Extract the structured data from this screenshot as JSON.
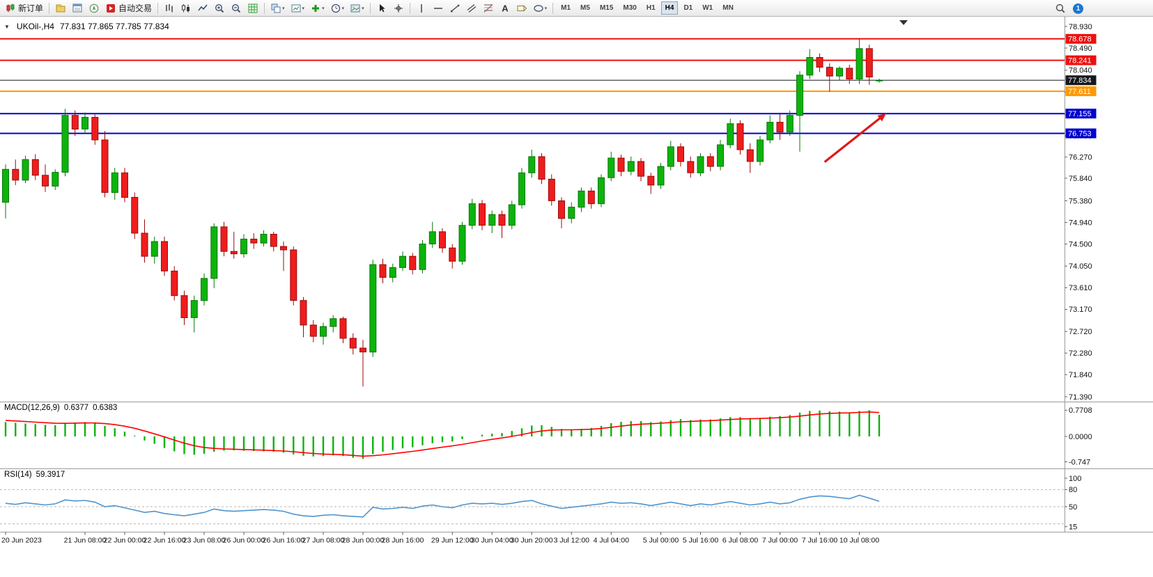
{
  "glyphs": {
    "collapse": "▼",
    "caret": "▾"
  },
  "toolbar": {
    "new_order_label": "新订单",
    "autotrade_label": "自动交易",
    "timeframes": [
      "M1",
      "M5",
      "M15",
      "M30",
      "H1",
      "H4",
      "D1",
      "W1",
      "MN"
    ],
    "active_timeframe": "H4",
    "notification_count": "1",
    "items": [
      {
        "type": "button",
        "name": "new-order-button",
        "icon": "neworder",
        "label": "新订单"
      },
      {
        "type": "sep"
      },
      {
        "type": "icon",
        "name": "charts-profile-icon",
        "icon": "profile"
      },
      {
        "type": "icon",
        "name": "market-watch-icon",
        "icon": "market"
      },
      {
        "type": "icon",
        "name": "navigator-icon",
        "icon": "navigator"
      },
      {
        "type": "button",
        "name": "autotrading-button",
        "icon": "autotrade",
        "label": "自动交易"
      },
      {
        "type": "sep"
      },
      {
        "type": "icon",
        "name": "bar-chart-type-icon",
        "icon": "bars"
      },
      {
        "type": "icon",
        "name": "candle-chart-type-icon",
        "icon": "candles"
      },
      {
        "type": "icon",
        "name": "line-chart-type-icon",
        "icon": "linechart"
      },
      {
        "type": "icon",
        "name": "zoom-in-icon",
        "icon": "zoomin"
      },
      {
        "type": "icon",
        "name": "zoom-out-icon",
        "icon": "zoomout"
      },
      {
        "type": "icon",
        "name": "grid-icon",
        "icon": "grid"
      },
      {
        "type": "sep"
      },
      {
        "type": "icon",
        "name": "tile-windows-icon",
        "icon": "tile",
        "caret": true
      },
      {
        "type": "icon",
        "name": "chart-shift-icon",
        "icon": "shift",
        "caret": true
      },
      {
        "type": "icon",
        "name": "add-indicator-icon",
        "icon": "addind",
        "caret": true
      },
      {
        "type": "icon",
        "name": "periods-icon",
        "icon": "clock",
        "caret": true
      },
      {
        "type": "icon",
        "name": "templates-icon",
        "icon": "template",
        "caret": true
      },
      {
        "type": "sep"
      },
      {
        "type": "icon",
        "name": "cursor-icon",
        "icon": "cursor"
      },
      {
        "type": "icon",
        "name": "crosshair-icon",
        "icon": "crosshair"
      },
      {
        "type": "sep"
      },
      {
        "type": "icon",
        "name": "vertical-line-icon",
        "icon": "vline"
      },
      {
        "type": "icon",
        "name": "horizontal-line-icon",
        "icon": "hline"
      },
      {
        "type": "icon",
        "name": "trendline-icon",
        "icon": "trend"
      },
      {
        "type": "icon",
        "name": "channel-icon",
        "icon": "channel"
      },
      {
        "type": "icon",
        "name": "fibonacci-icon",
        "icon": "fibo"
      },
      {
        "type": "icon",
        "name": "text-icon",
        "icon": "textA"
      },
      {
        "type": "icon",
        "name": "label-icon",
        "icon": "label"
      },
      {
        "type": "icon",
        "name": "shapes-icon",
        "icon": "shapes",
        "caret": true
      },
      {
        "type": "sep"
      },
      {
        "type": "tf-group"
      }
    ]
  },
  "chart": {
    "header": {
      "symbol_period": "UKOil-,H4",
      "ohlc": "77.831 77.865 77.785 77.834"
    },
    "price_axis": {
      "ticks": [
        "78.930",
        "78.490",
        "78.040",
        "77.590",
        "77.140",
        "76.700",
        "76.270",
        "75.840",
        "75.380",
        "74.940",
        "74.500",
        "74.050",
        "73.610",
        "73.170",
        "72.720",
        "72.280",
        "71.840",
        "71.390"
      ],
      "badges": [
        {
          "value": "78.678",
          "color": "#ee0f0f"
        },
        {
          "value": "78.241",
          "color": "#ee0f0f"
        },
        {
          "value": "77.834",
          "color": "#15181d"
        },
        {
          "value": "77.611",
          "color": "#ff9800"
        },
        {
          "value": "77.155",
          "color": "#0000d0"
        },
        {
          "value": "76.753",
          "color": "#0000d0"
        }
      ]
    },
    "levels": [
      {
        "price": 78.678,
        "color": "#ee0f0f",
        "width": 2
      },
      {
        "price": 78.241,
        "color": "#ee0f0f",
        "width": 2
      },
      {
        "price": 77.834,
        "color": "#1a1a1a",
        "width": 1
      },
      {
        "price": 77.611,
        "color": "#ff9800",
        "width": 2
      },
      {
        "price": 77.155,
        "color": "#0000d0",
        "width": 2
      },
      {
        "price": 76.753,
        "color": "#0000d0",
        "width": 2
      }
    ],
    "ylim": [
      71.39,
      78.93
    ]
  },
  "chart_data": {
    "type": "candlestick",
    "symbol": "UKOil-",
    "period": "H4",
    "up_color": "#0db30d",
    "up_border": "#067806",
    "down_color": "#ef1d1d",
    "down_border": "#9c0a0a",
    "candles": [
      [
        75.35,
        76.12,
        75.02,
        76.02
      ],
      [
        76.02,
        76.22,
        75.7,
        75.8
      ],
      [
        75.8,
        76.3,
        75.74,
        76.22
      ],
      [
        76.22,
        76.33,
        75.8,
        75.9
      ],
      [
        75.9,
        76.12,
        75.56,
        75.68
      ],
      [
        75.68,
        76.02,
        75.6,
        75.96
      ],
      [
        75.96,
        77.25,
        75.88,
        77.12
      ],
      [
        77.12,
        77.22,
        76.7,
        76.84
      ],
      [
        76.84,
        77.18,
        76.74,
        77.08
      ],
      [
        77.08,
        77.14,
        76.52,
        76.62
      ],
      [
        76.62,
        76.8,
        75.45,
        75.55
      ],
      [
        75.55,
        76.05,
        75.4,
        75.95
      ],
      [
        75.95,
        76.05,
        75.35,
        75.45
      ],
      [
        75.45,
        75.55,
        74.6,
        74.72
      ],
      [
        74.72,
        75.0,
        74.12,
        74.25
      ],
      [
        74.25,
        74.65,
        74.1,
        74.55
      ],
      [
        74.55,
        74.65,
        73.85,
        73.95
      ],
      [
        73.95,
        74.05,
        73.35,
        73.45
      ],
      [
        73.45,
        73.55,
        72.85,
        73.0
      ],
      [
        73.0,
        73.45,
        72.7,
        73.35
      ],
      [
        73.35,
        73.9,
        73.25,
        73.8
      ],
      [
        73.8,
        74.92,
        73.6,
        74.85
      ],
      [
        74.85,
        74.95,
        74.25,
        74.35
      ],
      [
        74.35,
        74.75,
        74.2,
        74.3
      ],
      [
        74.3,
        74.7,
        74.22,
        74.6
      ],
      [
        74.6,
        74.72,
        74.4,
        74.52
      ],
      [
        74.52,
        74.78,
        74.45,
        74.7
      ],
      [
        74.7,
        74.75,
        74.35,
        74.45
      ],
      [
        74.45,
        74.55,
        73.95,
        74.38
      ],
      [
        74.38,
        74.45,
        73.25,
        73.35
      ],
      [
        73.35,
        73.42,
        72.6,
        72.85
      ],
      [
        72.85,
        72.95,
        72.5,
        72.62
      ],
      [
        72.62,
        72.9,
        72.45,
        72.82
      ],
      [
        72.82,
        73.05,
        72.7,
        72.98
      ],
      [
        72.98,
        73.02,
        72.48,
        72.58
      ],
      [
        72.58,
        72.68,
        72.25,
        72.38
      ],
      [
        72.38,
        72.55,
        71.6,
        72.3
      ],
      [
        72.3,
        74.18,
        72.2,
        74.08
      ],
      [
        74.08,
        74.2,
        73.7,
        73.82
      ],
      [
        73.82,
        74.1,
        73.72,
        74.02
      ],
      [
        74.02,
        74.35,
        73.95,
        74.25
      ],
      [
        74.25,
        74.32,
        73.88,
        73.98
      ],
      [
        73.98,
        74.58,
        73.9,
        74.5
      ],
      [
        74.5,
        74.95,
        74.42,
        74.75
      ],
      [
        74.75,
        74.82,
        74.32,
        74.42
      ],
      [
        74.42,
        74.5,
        74.0,
        74.15
      ],
      [
        74.15,
        74.95,
        74.08,
        74.88
      ],
      [
        74.88,
        75.42,
        74.8,
        75.32
      ],
      [
        75.32,
        75.4,
        74.78,
        74.88
      ],
      [
        74.88,
        75.18,
        74.72,
        75.1
      ],
      [
        75.1,
        75.18,
        74.62,
        74.88
      ],
      [
        74.88,
        75.38,
        74.8,
        75.3
      ],
      [
        75.3,
        76.05,
        75.22,
        75.95
      ],
      [
        75.95,
        76.42,
        75.85,
        76.28
      ],
      [
        76.28,
        76.35,
        75.72,
        75.82
      ],
      [
        75.82,
        75.92,
        75.28,
        75.38
      ],
      [
        75.38,
        75.45,
        74.82,
        75.02
      ],
      [
        75.02,
        75.35,
        74.92,
        75.25
      ],
      [
        75.25,
        75.65,
        75.15,
        75.58
      ],
      [
        75.58,
        75.65,
        75.22,
        75.32
      ],
      [
        75.32,
        75.92,
        75.25,
        75.85
      ],
      [
        75.85,
        76.38,
        75.78,
        76.25
      ],
      [
        76.25,
        76.32,
        75.88,
        75.98
      ],
      [
        75.98,
        76.28,
        75.9,
        76.18
      ],
      [
        76.18,
        76.25,
        75.78,
        75.88
      ],
      [
        75.88,
        75.95,
        75.52,
        75.7
      ],
      [
        75.7,
        76.15,
        75.62,
        76.08
      ],
      [
        76.08,
        76.6,
        76.0,
        76.48
      ],
      [
        76.48,
        76.55,
        76.08,
        76.18
      ],
      [
        76.18,
        76.28,
        75.85,
        75.95
      ],
      [
        75.95,
        76.35,
        75.88,
        76.28
      ],
      [
        76.28,
        76.35,
        75.98,
        76.08
      ],
      [
        76.08,
        76.62,
        76.0,
        76.52
      ],
      [
        76.52,
        77.05,
        76.45,
        76.95
      ],
      [
        76.95,
        77.02,
        76.32,
        76.42
      ],
      [
        76.42,
        76.55,
        75.95,
        76.18
      ],
      [
        76.18,
        76.7,
        76.1,
        76.62
      ],
      [
        76.62,
        77.12,
        76.55,
        76.98
      ],
      [
        76.98,
        77.15,
        76.62,
        76.78
      ],
      [
        76.78,
        77.22,
        76.7,
        77.12
      ],
      [
        77.12,
        78.02,
        76.38,
        77.94
      ],
      [
        77.94,
        78.47,
        77.86,
        78.3
      ],
      [
        78.3,
        78.38,
        78.0,
        78.1
      ],
      [
        78.1,
        78.18,
        77.6,
        77.92
      ],
      [
        77.92,
        78.12,
        77.84,
        78.08
      ],
      [
        78.08,
        78.15,
        77.76,
        77.86
      ],
      [
        77.86,
        78.68,
        77.76,
        78.48
      ],
      [
        78.48,
        78.56,
        77.74,
        77.9
      ],
      [
        77.831,
        77.865,
        77.785,
        77.834
      ]
    ],
    "time_labels": [
      {
        "i": 0,
        "t": "20 Jun 2023"
      },
      {
        "i": 8,
        "t": "21 Jun 08:00"
      },
      {
        "i": 12,
        "t": "22 Jun 00:00"
      },
      {
        "i": 16,
        "t": "22 Jun 16:00"
      },
      {
        "i": 20,
        "t": "23 Jun 08:00"
      },
      {
        "i": 24,
        "t": "26 Jun 00:00"
      },
      {
        "i": 28,
        "t": "26 Jun 16:00"
      },
      {
        "i": 32,
        "t": "27 Jun 08:00"
      },
      {
        "i": 36,
        "t": "28 Jun 00:00"
      },
      {
        "i": 40,
        "t": "28 Jun 16:00"
      },
      {
        "i": 45,
        "t": "29 Jun 12:00"
      },
      {
        "i": 49,
        "t": "30 Jun 04:00"
      },
      {
        "i": 53,
        "t": "30 Jun 20:00"
      },
      {
        "i": 57,
        "t": "3 Jul 12:00"
      },
      {
        "i": 61,
        "t": "4 Jul 04:00"
      },
      {
        "i": 66,
        "t": "5 Jul 00:00"
      },
      {
        "i": 70,
        "t": "5 Jul 16:00"
      },
      {
        "i": 74,
        "t": "6 Jul 08:00"
      },
      {
        "i": 78,
        "t": "7 Jul 00:00"
      },
      {
        "i": 82,
        "t": "7 Jul 16:00"
      },
      {
        "i": 86,
        "t": "10 Jul 08:00"
      }
    ]
  },
  "annotation": {
    "type": "arrow",
    "color": "#e01818",
    "from": {
      "i": 82.5,
      "price": 76.17
    },
    "to": {
      "i": 88.7,
      "price": 77.16
    }
  },
  "macd": {
    "label": "MACD(12,26,9)",
    "v1": "0.6377",
    "v2": "0.6383",
    "axis": [
      "0.7708",
      "0.0000",
      "-0.747"
    ],
    "bar_color": "#0db30d",
    "line_color": "#ff0000",
    "values": [
      0.42,
      0.4,
      0.38,
      0.36,
      0.34,
      0.33,
      0.38,
      0.41,
      0.42,
      0.39,
      0.31,
      0.24,
      0.14,
      0.02,
      -0.12,
      -0.22,
      -0.34,
      -0.44,
      -0.52,
      -0.54,
      -0.51,
      -0.45,
      -0.42,
      -0.41,
      -0.42,
      -0.43,
      -0.44,
      -0.45,
      -0.48,
      -0.53,
      -0.57,
      -0.59,
      -0.58,
      -0.56,
      -0.58,
      -0.63,
      -0.66,
      -0.52,
      -0.45,
      -0.4,
      -0.35,
      -0.32,
      -0.26,
      -0.2,
      -0.17,
      -0.15,
      -0.08,
      0.0,
      0.05,
      0.08,
      0.1,
      0.16,
      0.24,
      0.32,
      0.33,
      0.28,
      0.22,
      0.2,
      0.22,
      0.25,
      0.31,
      0.39,
      0.43,
      0.45,
      0.45,
      0.42,
      0.44,
      0.48,
      0.51,
      0.48,
      0.5,
      0.5,
      0.53,
      0.57,
      0.57,
      0.54,
      0.55,
      0.58,
      0.6,
      0.63,
      0.7,
      0.75,
      0.76,
      0.74,
      0.73,
      0.71,
      0.75,
      0.7708,
      0.6377
    ]
  },
  "rsi": {
    "label": "RSI(14)",
    "value": "59.3917",
    "axis": [
      "100",
      "80",
      "50",
      "15"
    ],
    "level_lines": [
      80,
      50,
      20
    ],
    "line_color": "#4f94cd",
    "values": [
      56,
      54,
      57,
      55,
      53,
      55,
      62,
      60,
      61,
      58,
      50,
      52,
      48,
      44,
      40,
      42,
      38,
      36,
      34,
      37,
      40,
      46,
      43,
      42,
      43,
      44,
      45,
      44,
      42,
      37,
      34,
      33,
      35,
      36,
      34,
      33,
      32,
      49,
      46,
      47,
      49,
      47,
      51,
      53,
      50,
      48,
      53,
      56,
      55,
      56,
      54,
      56,
      59,
      61,
      55,
      51,
      47,
      49,
      51,
      53,
      55,
      58,
      56,
      57,
      55,
      52,
      55,
      58,
      55,
      52,
      55,
      53,
      56,
      59,
      56,
      53,
      55,
      58,
      55,
      57,
      63,
      67,
      69,
      68,
      66,
      64,
      70,
      65,
      59.39
    ]
  }
}
